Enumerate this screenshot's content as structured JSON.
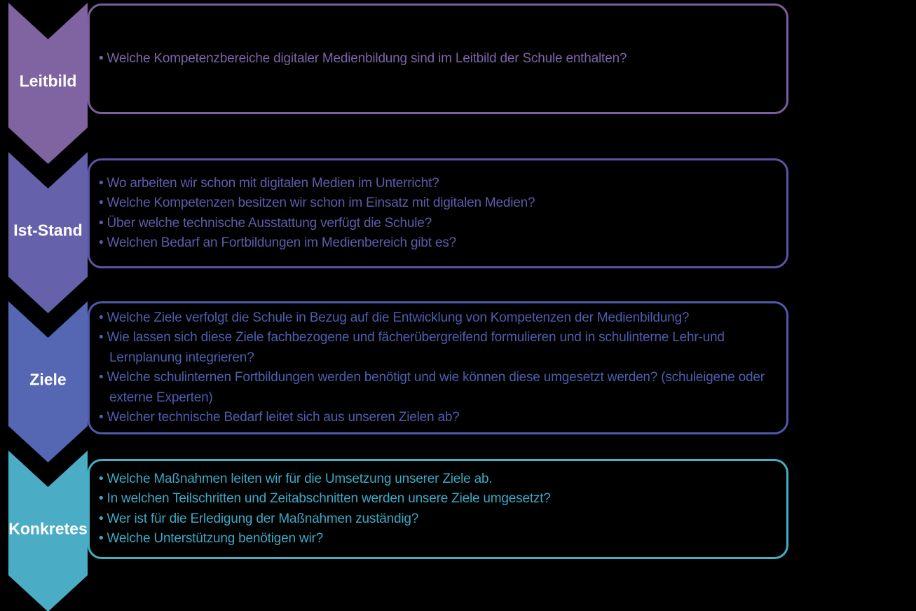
{
  "background_color": "#000000",
  "label_text_color": "#FFFFFF",
  "sections": [
    {
      "label": "Leitbild",
      "chevron_color": "#8064A2",
      "border_color": "#7A5E9E",
      "text_color": "#7E63A6",
      "bullets": [
        "Welche Kompetenzbereiche digitaler Medienbildung sind im Leitbild der Schule enthalten?"
      ]
    },
    {
      "label": "Ist-Stand",
      "chevron_color": "#6661AB",
      "border_color": "#5B55A6",
      "text_color": "#5F5BAB",
      "bullets": [
        "Wo arbeiten wir schon mit digitalen Medien im Unterricht?",
        "Welche Kompetenzen besitzen wir schon im Einsatz mit digitalen Medien?",
        "Über welche technische Ausstattung verfügt die Schule?",
        "Welchen Bedarf an Fortbildungen im Medienbereich gibt es?"
      ]
    },
    {
      "label": "Ziele",
      "chevron_color": "#5566B2",
      "border_color": "#4C5CAB",
      "text_color": "#4C5FAE",
      "bullets": [
        "Welche Ziele verfolgt die Schule in Bezug auf die Entwicklung von Kompetenzen der Medienbildung?",
        "Wie lassen sich diese Ziele fachbezogene und fächerübergreifend formulieren und in schulinterne Lehr-und Lernplanung integrieren?",
        "Welche schulinternen Fortbildungen werden benötigt und wie können diese umgesetzt werden? (schuleigene oder externe Experten)",
        "Welcher technische Bedarf leitet sich aus unseren Zielen ab?"
      ]
    },
    {
      "label": "Konkretes",
      "chevron_color": "#4BACC6",
      "border_color": "#42B0C7",
      "text_color": "#3BAAC6",
      "bullets": [
        "Welche Maßnahmen leiten wir für die Umsetzung unserer Ziele ab.",
        "In welchen Teilschritten und Zeitabschnitten werden unsere Ziele umgesetzt?",
        "Wer ist für die Erledigung der Maßnahmen zuständig?",
        "Welche Unterstützung benötigen wir?"
      ]
    }
  ]
}
